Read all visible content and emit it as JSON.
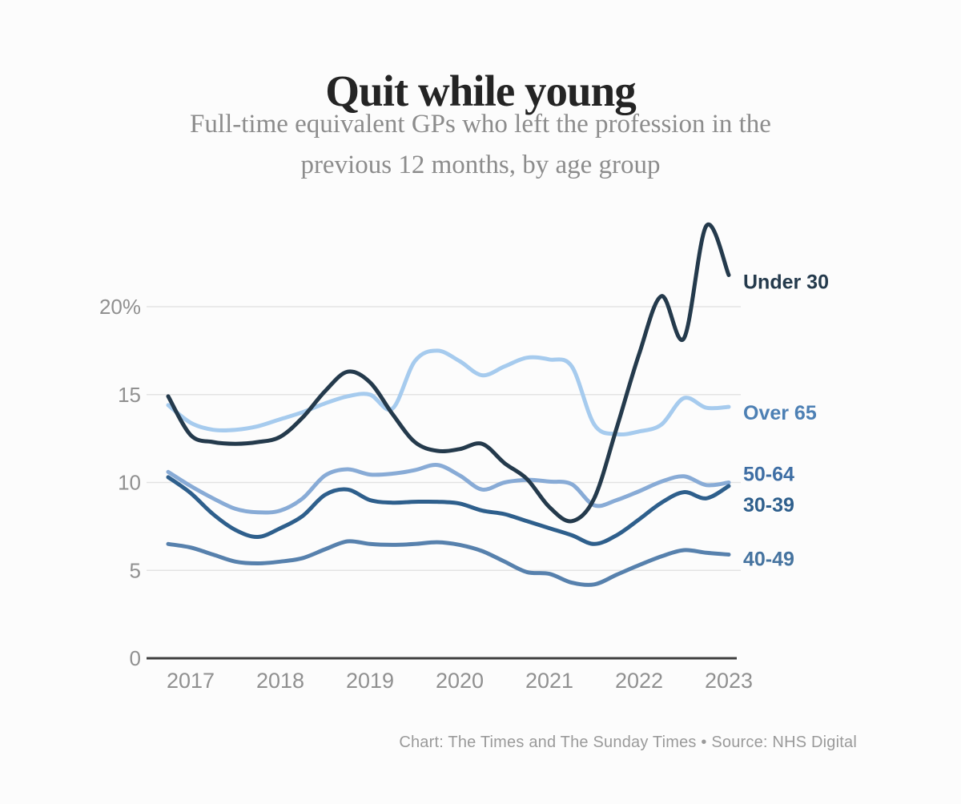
{
  "header": {
    "title": "Quit while young",
    "subtitle_lines": [
      "Full-time equivalent GPs who left the profession in the",
      "previous 12 months, by age group"
    ]
  },
  "footer": {
    "credit": "Chart: The Times and The Sunday Times • Source: NHS Digital"
  },
  "chart_data": {
    "type": "line",
    "title": "Quit while young",
    "subtitle": "Full-time equivalent GPs who left the profession in the previous 12 months, by age group",
    "source": "NHS Digital",
    "credit": "The Times and The Sunday Times",
    "unit": "%",
    "grid": true,
    "legend_position": "right-of-line-ends",
    "xlim": [
      2016.7,
      2023.05
    ],
    "ylim": [
      0,
      25.5
    ],
    "grid_color": "#e3e3e3",
    "axis_color": "#404040",
    "tick_color": "#909090",
    "x": [
      2016.75,
      2017,
      2017.25,
      2017.5,
      2017.75,
      2018,
      2018.25,
      2018.5,
      2018.75,
      2019,
      2019.25,
      2019.5,
      2019.75,
      2020,
      2020.25,
      2020.5,
      2020.75,
      2021,
      2021.25,
      2021.5,
      2021.75,
      2022,
      2022.25,
      2022.5,
      2022.75,
      2023
    ],
    "yticks": [
      {
        "v": 0,
        "label": "0"
      },
      {
        "v": 5,
        "label": "5"
      },
      {
        "v": 10,
        "label": "10"
      },
      {
        "v": 15,
        "label": "15"
      },
      {
        "v": 20,
        "label": "20%"
      }
    ],
    "xticks": [
      {
        "v": 2017,
        "label": "2017"
      },
      {
        "v": 2018,
        "label": "2018"
      },
      {
        "v": 2019,
        "label": "2019"
      },
      {
        "v": 2020,
        "label": "2020"
      },
      {
        "v": 2021,
        "label": "2021"
      },
      {
        "v": 2022,
        "label": "2022"
      },
      {
        "v": 2023,
        "label": "2023"
      }
    ],
    "series": [
      {
        "name": "Under 30",
        "color": "#243a4c",
        "label_color": "#243a4c",
        "values": [
          14.9,
          12.7,
          12.3,
          12.2,
          12.3,
          12.6,
          13.7,
          15.2,
          16.3,
          15.7,
          13.9,
          12.3,
          11.8,
          11.9,
          12.2,
          11.1,
          10.2,
          8.6,
          7.8,
          9.1,
          13.1,
          17.3,
          20.6,
          18.2,
          24.6,
          21.8
        ]
      },
      {
        "name": "Over 65",
        "color": "#a6cbee",
        "label_color": "#4d80b4",
        "values": [
          14.4,
          13.4,
          13.0,
          13.0,
          13.2,
          13.6,
          14.0,
          14.5,
          14.9,
          15.0,
          14.2,
          16.9,
          17.5,
          16.9,
          16.1,
          16.6,
          17.1,
          17.0,
          16.6,
          13.3,
          12.75,
          12.9,
          13.3,
          14.8,
          14.25,
          14.3
        ]
      },
      {
        "name": "50-64",
        "color": "#88abd6",
        "label_color": "#3e6ea4",
        "values": [
          10.6,
          9.8,
          9.1,
          8.5,
          8.3,
          8.4,
          9.1,
          10.4,
          10.75,
          10.45,
          10.5,
          10.7,
          11.0,
          10.4,
          9.6,
          10.0,
          10.15,
          10.05,
          9.9,
          8.7,
          9.0,
          9.5,
          10.05,
          10.35,
          9.85,
          10.0
        ]
      },
      {
        "name": "30-39",
        "color": "#2e5f8c",
        "label_color": "#2e5f8c",
        "values": [
          10.3,
          9.4,
          8.2,
          7.3,
          6.9,
          7.4,
          8.1,
          9.3,
          9.6,
          9.0,
          8.85,
          8.9,
          8.9,
          8.8,
          8.4,
          8.2,
          7.8,
          7.4,
          7.0,
          6.5,
          7.0,
          7.9,
          8.85,
          9.45,
          9.1,
          9.8
        ]
      },
      {
        "name": "40-49",
        "color": "#5781ad",
        "label_color": "#45739f",
        "values": [
          6.5,
          6.3,
          5.9,
          5.5,
          5.4,
          5.5,
          5.7,
          6.2,
          6.65,
          6.5,
          6.45,
          6.5,
          6.6,
          6.45,
          6.1,
          5.5,
          4.9,
          4.8,
          4.3,
          4.2,
          4.75,
          5.3,
          5.8,
          6.15,
          6.0,
          5.9
        ]
      }
    ]
  }
}
